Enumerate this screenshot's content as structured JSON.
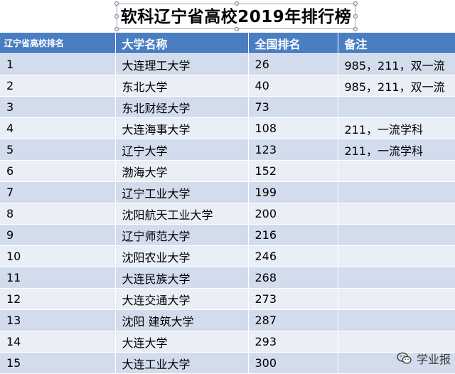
{
  "title": "软科辽宁省高校2019年排行榜",
  "table": {
    "headers": [
      "辽宁省高校排名",
      "大学名称",
      "全国排名",
      "备注"
    ],
    "rows": [
      {
        "rank": "1",
        "name": "大连理工大学",
        "national": "26",
        "note": "985，211，双一流"
      },
      {
        "rank": "2",
        "name": "东北大学",
        "national": "40",
        "note": "985，211，双一流"
      },
      {
        "rank": "3",
        "name": "东北财经大学",
        "national": "73",
        "note": ""
      },
      {
        "rank": "4",
        "name": "大连海事大学",
        "national": "108",
        "note": "211，一流学科"
      },
      {
        "rank": "5",
        "name": "辽宁大学",
        "national": "123",
        "note": "211，一流学科"
      },
      {
        "rank": "6",
        "name": "渤海大学",
        "national": "152",
        "note": ""
      },
      {
        "rank": "7",
        "name": "辽宁工业大学",
        "national": "199",
        "note": ""
      },
      {
        "rank": "8",
        "name": "沈阳航天工业大学",
        "national": "200",
        "note": ""
      },
      {
        "rank": "9",
        "name": "辽宁师范大学",
        "national": "216",
        "note": ""
      },
      {
        "rank": "10",
        "name": "沈阳农业大学",
        "national": "246",
        "note": ""
      },
      {
        "rank": "11",
        "name": "大连民族大学",
        "national": "268",
        "note": ""
      },
      {
        "rank": "12",
        "name": "大连交通大学",
        "national": "273",
        "note": ""
      },
      {
        "rank": "13",
        "name": "沈阳 建筑大学",
        "national": "287",
        "note": ""
      },
      {
        "rank": "14",
        "name": "大连大学",
        "national": "293",
        "note": ""
      },
      {
        "rank": "15",
        "name": "大连工业大学",
        "national": "300",
        "note": ""
      }
    ]
  },
  "watermark": {
    "text": "学业报",
    "icon": "wechat-icon"
  }
}
